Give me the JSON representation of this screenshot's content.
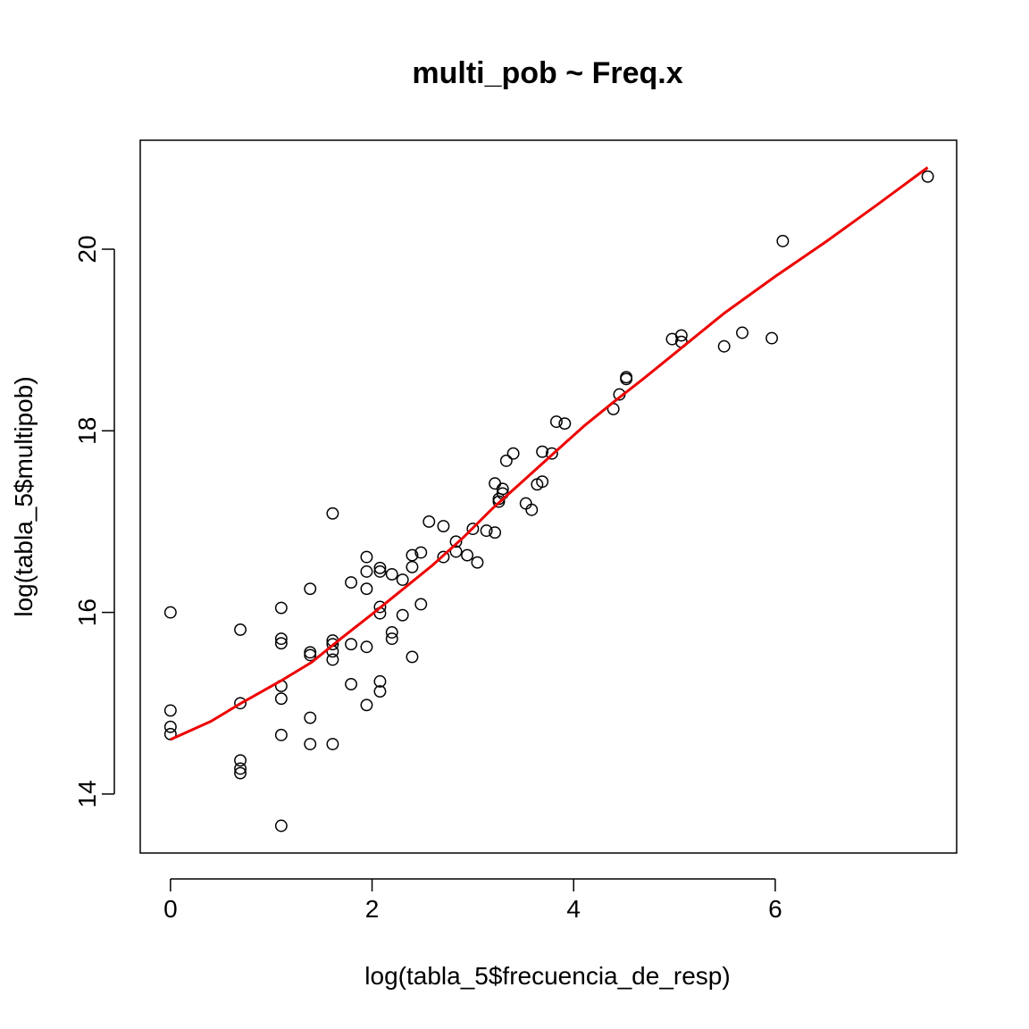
{
  "chart_data": {
    "type": "scatter",
    "title": "multi_pob ~ Freq.x",
    "xlabel": "log(tabla_5$frecuencia_de_resp)",
    "ylabel": "log(tabla_5$multipob)",
    "xlim": [
      -0.3,
      7.8
    ],
    "ylim": [
      13.35,
      21.2
    ],
    "xticks": [
      0,
      2,
      4,
      6
    ],
    "yticks": [
      14,
      16,
      18,
      20
    ],
    "point_color": "#000000",
    "smooth_color": "#ee0000",
    "grid": false,
    "legend": "none",
    "points": [
      [
        0,
        16.0
      ],
      [
        0,
        14.92
      ],
      [
        0,
        14.74
      ],
      [
        0,
        14.66
      ],
      [
        0.693,
        15.81
      ],
      [
        0.693,
        15.0
      ],
      [
        0.693,
        14.37
      ],
      [
        0.693,
        14.28
      ],
      [
        0.693,
        14.23
      ],
      [
        1.099,
        16.05
      ],
      [
        1.099,
        15.71
      ],
      [
        1.099,
        15.66
      ],
      [
        1.099,
        15.19
      ],
      [
        1.099,
        15.05
      ],
      [
        1.099,
        14.65
      ],
      [
        1.099,
        13.65
      ],
      [
        1.386,
        16.26
      ],
      [
        1.386,
        15.56
      ],
      [
        1.386,
        15.53
      ],
      [
        1.386,
        14.84
      ],
      [
        1.386,
        14.55
      ],
      [
        1.609,
        17.09
      ],
      [
        1.609,
        15.69
      ],
      [
        1.609,
        15.65
      ],
      [
        1.609,
        15.57
      ],
      [
        1.609,
        15.48
      ],
      [
        1.609,
        14.55
      ],
      [
        1.792,
        16.33
      ],
      [
        1.792,
        15.65
      ],
      [
        1.792,
        15.21
      ],
      [
        1.946,
        16.61
      ],
      [
        1.946,
        16.45
      ],
      [
        1.946,
        16.26
      ],
      [
        1.946,
        15.62
      ],
      [
        1.946,
        14.98
      ],
      [
        2.079,
        16.49
      ],
      [
        2.079,
        16.45
      ],
      [
        2.079,
        16.06
      ],
      [
        2.079,
        15.99
      ],
      [
        2.079,
        15.24
      ],
      [
        2.079,
        15.13
      ],
      [
        2.197,
        16.42
      ],
      [
        2.197,
        15.78
      ],
      [
        2.197,
        15.71
      ],
      [
        2.303,
        16.36
      ],
      [
        2.303,
        15.97
      ],
      [
        2.398,
        16.63
      ],
      [
        2.398,
        16.5
      ],
      [
        2.398,
        15.51
      ],
      [
        2.485,
        16.66
      ],
      [
        2.485,
        16.09
      ],
      [
        2.565,
        17.0
      ],
      [
        2.708,
        16.95
      ],
      [
        2.708,
        16.61
      ],
      [
        2.833,
        16.78
      ],
      [
        2.833,
        16.67
      ],
      [
        2.944,
        16.63
      ],
      [
        3.0,
        16.92
      ],
      [
        3.045,
        16.55
      ],
      [
        3.135,
        16.9
      ],
      [
        3.219,
        17.42
      ],
      [
        3.219,
        16.88
      ],
      [
        3.258,
        17.25
      ],
      [
        3.258,
        17.22
      ],
      [
        3.296,
        17.36
      ],
      [
        3.296,
        17.31
      ],
      [
        3.332,
        17.67
      ],
      [
        3.401,
        17.75
      ],
      [
        3.526,
        17.2
      ],
      [
        3.584,
        17.13
      ],
      [
        3.638,
        17.41
      ],
      [
        3.689,
        17.77
      ],
      [
        3.689,
        17.44
      ],
      [
        3.784,
        17.75
      ],
      [
        3.829,
        18.1
      ],
      [
        3.912,
        18.08
      ],
      [
        4.394,
        18.24
      ],
      [
        4.454,
        18.4
      ],
      [
        4.522,
        18.59
      ],
      [
        4.522,
        18.57
      ],
      [
        4.977,
        19.01
      ],
      [
        5.069,
        19.05
      ],
      [
        5.069,
        18.98
      ],
      [
        5.493,
        18.93
      ],
      [
        5.673,
        19.08
      ],
      [
        5.966,
        19.02
      ],
      [
        6.075,
        20.09
      ],
      [
        7.513,
        20.8
      ]
    ],
    "smooth_line": [
      [
        0,
        14.6
      ],
      [
        0.4,
        14.8
      ],
      [
        0.7,
        15.0
      ],
      [
        1.1,
        15.25
      ],
      [
        1.4,
        15.45
      ],
      [
        1.7,
        15.72
      ],
      [
        2.0,
        15.98
      ],
      [
        2.3,
        16.25
      ],
      [
        2.6,
        16.52
      ],
      [
        2.9,
        16.82
      ],
      [
        3.2,
        17.15
      ],
      [
        3.5,
        17.45
      ],
      [
        3.8,
        17.75
      ],
      [
        4.1,
        18.05
      ],
      [
        4.4,
        18.32
      ],
      [
        4.7,
        18.58
      ],
      [
        5.0,
        18.85
      ],
      [
        5.5,
        19.3
      ],
      [
        6.0,
        19.7
      ],
      [
        6.5,
        20.08
      ],
      [
        7.0,
        20.48
      ],
      [
        7.513,
        20.9
      ]
    ]
  }
}
